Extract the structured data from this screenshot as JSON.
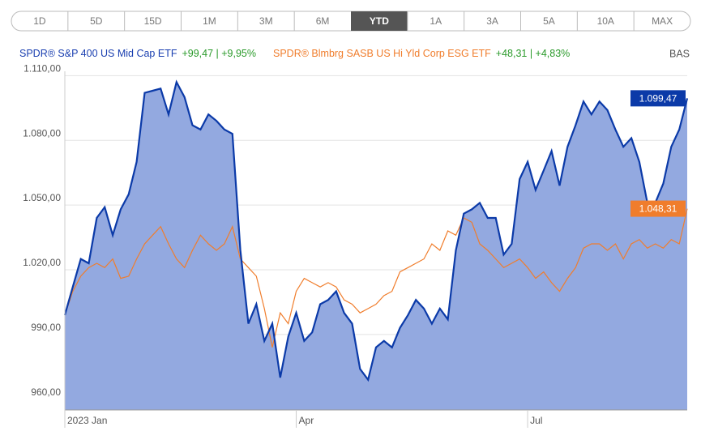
{
  "ranges": [
    "1D",
    "5D",
    "15D",
    "1M",
    "3M",
    "6M",
    "YTD",
    "1A",
    "3A",
    "5A",
    "10A",
    "MAX"
  ],
  "active_range": 6,
  "chart_data": {
    "type": "area-line",
    "right_text": "BAS",
    "categories": [
      "2023 Jan",
      null,
      null,
      null,
      null,
      null,
      null,
      null,
      null,
      null,
      null,
      null,
      null,
      null,
      null,
      null,
      null,
      null,
      null,
      null,
      null,
      null,
      null,
      null,
      null,
      null,
      null,
      null,
      null,
      "Apr",
      null,
      null,
      null,
      null,
      null,
      null,
      null,
      null,
      null,
      null,
      null,
      null,
      null,
      null,
      null,
      null,
      null,
      null,
      null,
      null,
      null,
      null,
      null,
      null,
      null,
      null,
      null,
      null,
      "Jul",
      null,
      null,
      null,
      null,
      null,
      null,
      null,
      null,
      null,
      null,
      null,
      null,
      null,
      null,
      null,
      null,
      null,
      null,
      null,
      null
    ],
    "ylim": [
      955,
      1112
    ],
    "yticks": [
      {
        "value": 960,
        "label": "960,00"
      },
      {
        "value": 990,
        "label": "990,00"
      },
      {
        "value": 1020,
        "label": "1.020,00"
      },
      {
        "value": 1050,
        "label": "1.050,00"
      },
      {
        "value": 1080,
        "label": "1.080,00"
      },
      {
        "value": 1110,
        "label": "1.110,00"
      }
    ],
    "grid": true,
    "series": [
      {
        "name": "SPDR® S&P 400 US Mid Cap ETF",
        "change": "+99,47 | +9,95%",
        "color": "#0b3aa8",
        "fill": "#93a9e0",
        "values": [
          999,
          1012,
          1025,
          1023,
          1044,
          1049,
          1036,
          1048,
          1055,
          1070,
          1102,
          1103,
          1104,
          1092,
          1107,
          1100,
          1087,
          1085,
          1092,
          1089,
          1085,
          1083,
          1029,
          995,
          1004,
          987,
          995,
          970,
          989,
          1000,
          987,
          991,
          1004,
          1006,
          1010,
          1000,
          995,
          974,
          969,
          984,
          987,
          984,
          993,
          999,
          1006,
          1002,
          995,
          1002,
          997,
          1029,
          1046,
          1048,
          1051,
          1044,
          1044,
          1027,
          1032,
          1062,
          1070,
          1057,
          1066,
          1075,
          1059,
          1077,
          1087,
          1098,
          1092,
          1098,
          1094,
          1085,
          1077,
          1081,
          1070,
          1051,
          1051,
          1060,
          1077,
          1085,
          1099.47
        ],
        "value_labels": [
          null,
          null,
          null,
          null,
          null,
          null,
          null,
          null,
          null,
          null,
          null,
          null,
          null,
          null,
          null,
          null,
          null,
          null,
          null,
          null,
          null,
          null,
          null,
          null,
          null,
          null,
          null,
          null,
          null,
          null,
          null,
          null,
          null,
          null,
          null,
          null,
          null,
          null,
          null,
          null,
          null,
          null,
          null,
          null,
          null,
          null,
          null,
          null,
          null,
          null,
          null,
          null,
          null,
          null,
          null,
          null,
          null,
          null,
          null,
          null,
          null,
          null,
          null,
          null,
          null,
          null,
          null,
          null,
          null,
          null,
          null,
          null,
          null,
          null,
          null,
          null,
          null,
          null,
          "1.099,47"
        ]
      },
      {
        "name": "SPDR® Blmbrg SASB US Hi Yld Corp ESG ETF",
        "change": "+48,31 | +4,83%",
        "color": "#f07d2c",
        "values": [
          999,
          1010,
          1017,
          1021,
          1023,
          1021,
          1025,
          1016,
          1017,
          1025,
          1032,
          1036,
          1040,
          1032,
          1025,
          1021,
          1029,
          1036,
          1032,
          1029,
          1032,
          1040,
          1025,
          1021,
          1017,
          1002,
          984,
          1000,
          995,
          1010,
          1016,
          1014,
          1012,
          1014,
          1012,
          1006,
          1004,
          1000,
          1002,
          1004,
          1008,
          1010,
          1019,
          1021,
          1023,
          1025,
          1032,
          1029,
          1038,
          1036,
          1044,
          1042,
          1032,
          1029,
          1025,
          1021,
          1023,
          1025,
          1021,
          1016,
          1019,
          1014,
          1010,
          1016,
          1021,
          1030,
          1032,
          1032,
          1029,
          1032,
          1025,
          1032,
          1034,
          1030,
          1032,
          1030,
          1034,
          1032,
          1048.31
        ],
        "value_labels": [
          null,
          null,
          null,
          null,
          null,
          null,
          null,
          null,
          null,
          null,
          null,
          null,
          null,
          null,
          null,
          null,
          null,
          null,
          null,
          null,
          null,
          null,
          null,
          null,
          null,
          null,
          null,
          null,
          null,
          null,
          null,
          null,
          null,
          null,
          null,
          null,
          null,
          null,
          null,
          null,
          null,
          null,
          null,
          null,
          null,
          null,
          null,
          null,
          null,
          null,
          null,
          null,
          null,
          null,
          null,
          null,
          null,
          null,
          null,
          null,
          null,
          null,
          null,
          null,
          null,
          null,
          null,
          null,
          null,
          null,
          null,
          null,
          null,
          null,
          null,
          null,
          null,
          null,
          "1.048,31"
        ]
      }
    ]
  }
}
